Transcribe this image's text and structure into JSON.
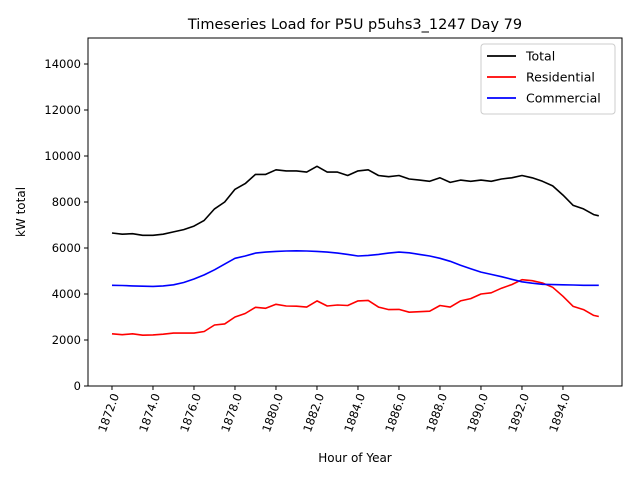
{
  "chart_data": {
    "type": "line",
    "title": "Timeseries Load for P5U p5uhs3_1247  Day 79",
    "xlabel": "Hour of Year",
    "ylabel": "kW total",
    "xlim": [
      1870.83,
      1896.88
    ],
    "ylim": [
      0,
      15130
    ],
    "xticks": [
      1872,
      1874,
      1876,
      1878,
      1880,
      1882,
      1884,
      1886,
      1888,
      1890,
      1892,
      1894
    ],
    "xtick_labels": [
      "1872.0",
      "1874.0",
      "1876.0",
      "1878.0",
      "1880.0",
      "1882.0",
      "1884.0",
      "1886.0",
      "1888.0",
      "1890.0",
      "1892.0",
      "1894.0"
    ],
    "yticks": [
      0,
      2000,
      4000,
      6000,
      8000,
      10000,
      12000,
      14000
    ],
    "ytick_labels": [
      "0",
      "2000",
      "4000",
      "6000",
      "8000",
      "10000",
      "12000",
      "14000"
    ],
    "grid": false,
    "legend_position": "top-right",
    "x": [
      1872,
      1872.5,
      1873,
      1873.5,
      1874,
      1874.5,
      1875,
      1875.5,
      1876,
      1876.5,
      1877,
      1877.5,
      1878,
      1878.5,
      1879,
      1879.5,
      1880,
      1880.5,
      1881,
      1881.5,
      1882,
      1882.5,
      1883,
      1883.5,
      1884,
      1884.5,
      1885,
      1885.5,
      1886,
      1886.5,
      1887,
      1887.5,
      1888,
      1888.5,
      1889,
      1889.5,
      1890,
      1890.5,
      1891,
      1891.5,
      1892,
      1892.5,
      1893,
      1893.5,
      1894,
      1894.5,
      1895,
      1895.5,
      1895.75
    ],
    "series": [
      {
        "name": "Total",
        "color": "#000000",
        "values": [
          6650,
          6600,
          6620,
          6550,
          6550,
          6600,
          6700,
          6800,
          6950,
          7200,
          7700,
          8000,
          8550,
          8800,
          9200,
          9200,
          9400,
          9350,
          9350,
          9300,
          9550,
          9300,
          9300,
          9150,
          9350,
          9400,
          9150,
          9100,
          9150,
          9000,
          8950,
          8900,
          9050,
          8850,
          8950,
          8900,
          8950,
          8900,
          9000,
          9050,
          9150,
          9050,
          8900,
          8700,
          8300,
          7850,
          7700,
          7450,
          7400
        ]
      },
      {
        "name": "Residential",
        "color": "#ff0000",
        "values": [
          2270,
          2230,
          2270,
          2210,
          2220,
          2250,
          2300,
          2300,
          2300,
          2370,
          2650,
          2700,
          3000,
          3150,
          3420,
          3380,
          3550,
          3480,
          3470,
          3430,
          3700,
          3480,
          3520,
          3500,
          3700,
          3720,
          3430,
          3320,
          3330,
          3210,
          3230,
          3250,
          3500,
          3430,
          3700,
          3800,
          4000,
          4050,
          4250,
          4410,
          4620,
          4580,
          4480,
          4290,
          3900,
          3460,
          3320,
          3070,
          3020
        ]
      },
      {
        "name": "Commercial",
        "color": "#0000ff",
        "values": [
          4380,
          4370,
          4350,
          4340,
          4330,
          4350,
          4400,
          4500,
          4650,
          4830,
          5050,
          5300,
          5550,
          5650,
          5780,
          5820,
          5850,
          5870,
          5880,
          5870,
          5850,
          5820,
          5780,
          5720,
          5650,
          5680,
          5720,
          5780,
          5820,
          5790,
          5720,
          5650,
          5550,
          5420,
          5250,
          5100,
          4950,
          4850,
          4750,
          4640,
          4530,
          4470,
          4420,
          4410,
          4400,
          4390,
          4380,
          4380,
          4380
        ]
      }
    ]
  }
}
